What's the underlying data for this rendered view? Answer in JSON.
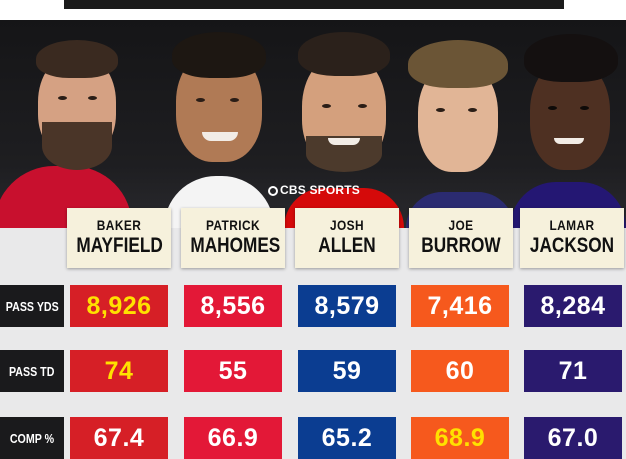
{
  "watermark": {
    "label": "CBS SPORTS",
    "icon": "cbs-eye-icon"
  },
  "colors": {
    "mayfield": "#d61f26",
    "mahomes": "#e31837",
    "allen": "#0b3d91",
    "burrow": "#f6591d",
    "jackson": "#2a1a6e",
    "leader_text": "#ffe100",
    "label_bg": "#1a1a1c"
  },
  "players": [
    {
      "first": "BAKER",
      "last": "MAYFIELD"
    },
    {
      "first": "PATRICK",
      "last": "MAHOMES"
    },
    {
      "first": "JOSH",
      "last": "ALLEN"
    },
    {
      "first": "JOE",
      "last": "BURROW"
    },
    {
      "first": "LAMAR",
      "last": "JACKSON"
    }
  ],
  "stats": [
    {
      "label": "PASS YDS",
      "values": [
        "8,926",
        "8,556",
        "8,579",
        "7,416",
        "8,284"
      ],
      "leader_index": 0
    },
    {
      "label": "PASS TD",
      "values": [
        "74",
        "55",
        "59",
        "60",
        "71"
      ],
      "leader_index": 0
    },
    {
      "label": "COMP %",
      "values": [
        "67.4",
        "66.9",
        "65.2",
        "68.9",
        "67.0"
      ],
      "leader_index": 3
    }
  ]
}
